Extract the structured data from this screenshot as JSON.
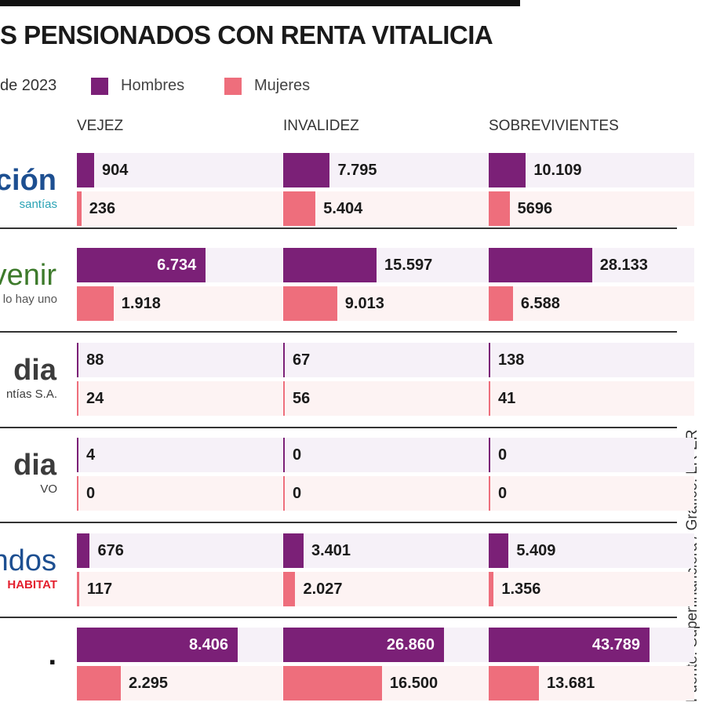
{
  "header": {
    "title": "S PENSIONADOS CON RENTA VITALICIA",
    "subtitle": "de 2023"
  },
  "source": "Fuente: Superfinanciera / Gráfico: LR-ER",
  "colors": {
    "hombres": "#7b2077",
    "mujeres": "#ee6e7c",
    "hombres_bg": "#f6f1f8",
    "mujeres_bg": "#fdf3f3",
    "logo_blue": "#1d4f91",
    "logo_teal": "#2aa3b5",
    "logo_green": "#3d7a2b",
    "logo_gray": "#3c3c3c",
    "logo_red": "#e4202e"
  },
  "logos": [
    {
      "main": "ción",
      "sub": "santías"
    },
    {
      "main": "venir",
      "sub": "lo hay uno"
    },
    {
      "main": "dia",
      "sub": "ntías S.A."
    },
    {
      "main": "dia",
      "sub": "VO"
    },
    {
      "main": "ndos",
      "sub": "HABITAT"
    },
    {
      "main": ".",
      "sub": ""
    }
  ],
  "chart_data": {
    "type": "bar",
    "orientation": "horizontal",
    "legend": {
      "placement": "top",
      "entries": [
        "Hombres",
        "Mujeres"
      ]
    },
    "columns": [
      "VEJEZ",
      "INVALIDEZ",
      "SOBREVIVIENTES"
    ],
    "rows": [
      {
        "hombres": [
          "904",
          "7.795",
          "10.109"
        ],
        "mujeres": [
          "236",
          "5.404",
          "5696"
        ],
        "hv": [
          904,
          7795,
          10109
        ],
        "mv": [
          236,
          5404,
          5696
        ]
      },
      {
        "hombres": [
          "6.734",
          "15.597",
          "28.133"
        ],
        "mujeres": [
          "1.918",
          "9.013",
          "6.588"
        ],
        "hv": [
          6734,
          15597,
          28133
        ],
        "mv": [
          1918,
          9013,
          6588
        ]
      },
      {
        "hombres": [
          "88",
          "67",
          "138"
        ],
        "mujeres": [
          "24",
          "56",
          "41"
        ],
        "hv": [
          88,
          67,
          138
        ],
        "mv": [
          24,
          56,
          41
        ]
      },
      {
        "hombres": [
          "4",
          "0",
          "0"
        ],
        "mujeres": [
          "0",
          "0",
          "0"
        ],
        "hv": [
          4,
          0,
          0
        ],
        "mv": [
          0,
          0,
          0
        ]
      },
      {
        "hombres": [
          "676",
          "3.401",
          "5.409"
        ],
        "mujeres": [
          "117",
          "2.027",
          "1.356"
        ],
        "hv": [
          676,
          3401,
          5409
        ],
        "mv": [
          117,
          2027,
          1356
        ]
      },
      {
        "hombres": [
          "8.406",
          "26.860",
          "43.789"
        ],
        "mujeres": [
          "2.295",
          "16.500",
          "13.681"
        ],
        "hv": [
          8406,
          26860,
          43789
        ],
        "mv": [
          2295,
          16500,
          13681
        ]
      }
    ]
  }
}
